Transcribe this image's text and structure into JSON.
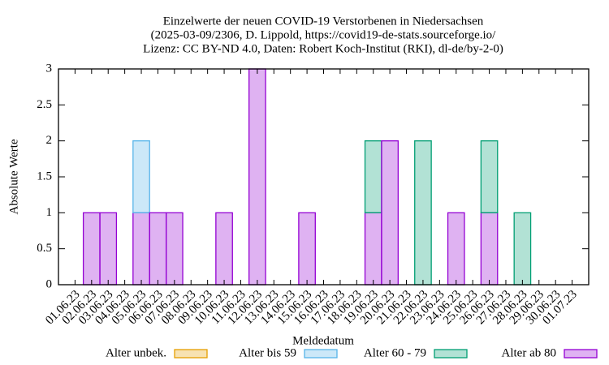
{
  "chart_data": {
    "type": "bar",
    "stacked": true,
    "title": [
      "Einzelwerte der neuen COVID-19 Verstorbenen in Niedersachsen",
      "(2025-03-09/2306, D. Lippold, https://covid19-de-stats.sourceforge.io/",
      "Lizenz: CC BY-ND 4.0, Daten: Robert Koch-Institut (RKI), dl-de/by-2-0)"
    ],
    "x_label": "Meldedatum",
    "y_label": "Absolute Werte",
    "categories": [
      "01.06.23",
      "02.06.23",
      "03.06.23",
      "04.06.23",
      "05.06.23",
      "06.06.23",
      "07.06.23",
      "08.06.23",
      "09.06.23",
      "10.06.23",
      "11.06.23",
      "12.06.23",
      "13.06.23",
      "14.06.23",
      "15.06.23",
      "16.06.23",
      "17.06.23",
      "18.06.23",
      "19.06.23",
      "20.06.23",
      "21.06.23",
      "22.06.23",
      "23.06.23",
      "24.06.23",
      "25.06.23",
      "26.06.23",
      "27.06.23",
      "28.06.23",
      "29.06.23",
      "30.06.23",
      "01.07.23"
    ],
    "series": [
      {
        "name": "Alter unbek.",
        "color": "#e69f00",
        "values": [
          0,
          0,
          0,
          0,
          0,
          0,
          0,
          0,
          0,
          0,
          0,
          0,
          0,
          0,
          0,
          0,
          0,
          0,
          0,
          0,
          0,
          0,
          0,
          0,
          0,
          0,
          0,
          0,
          0,
          0,
          0
        ]
      },
      {
        "name": "Alter bis 59",
        "color": "#56b4e9",
        "values": [
          0,
          0,
          0,
          0,
          1,
          0,
          0,
          0,
          0,
          0,
          0,
          0,
          0,
          0,
          0,
          0,
          0,
          0,
          0,
          0,
          0,
          0,
          0,
          0,
          0,
          0,
          0,
          0,
          0,
          0,
          0
        ]
      },
      {
        "name": "Alter 60 - 79",
        "color": "#009e73",
        "values": [
          0,
          0,
          0,
          0,
          0,
          0,
          0,
          0,
          0,
          0,
          0,
          0,
          0,
          0,
          0,
          0,
          0,
          0,
          1,
          0,
          0,
          2,
          0,
          0,
          0,
          1,
          0,
          1,
          0,
          0,
          0
        ]
      },
      {
        "name": "Alter ab 80",
        "color": "#9400d3",
        "values": [
          0,
          1,
          1,
          0,
          1,
          1,
          1,
          0,
          0,
          1,
          0,
          3,
          0,
          0,
          1,
          0,
          0,
          0,
          1,
          2,
          0,
          0,
          0,
          1,
          0,
          1,
          0,
          0,
          0,
          0,
          0
        ]
      }
    ],
    "stack_order": [
      "Alter ab 80",
      "Alter 60 - 79",
      "Alter bis 59",
      "Alter unbek."
    ],
    "ylim": [
      0,
      3
    ],
    "yticks": [
      0,
      0.5,
      1,
      1.5,
      2,
      2.5,
      3
    ]
  }
}
